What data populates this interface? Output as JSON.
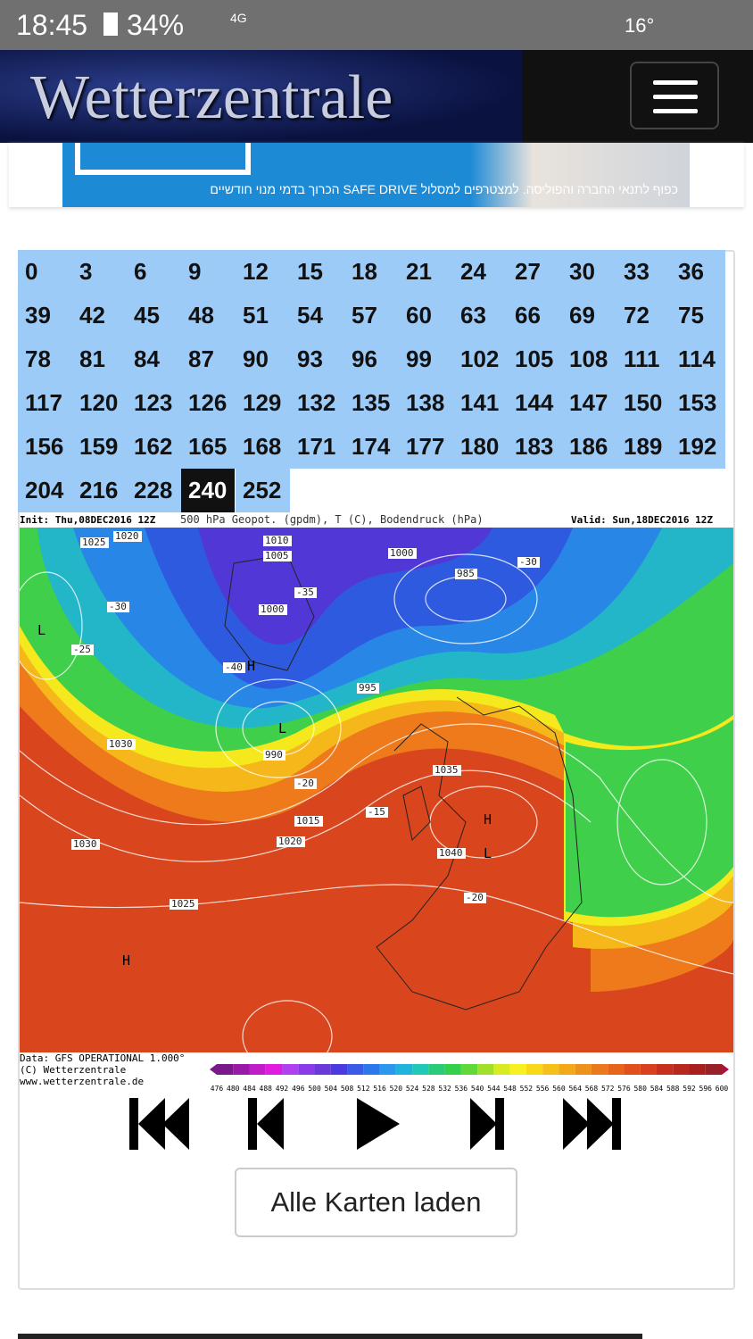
{
  "status_bar": {
    "time": "18:45",
    "battery": "34%",
    "network": "4G",
    "temperature": "16°"
  },
  "header": {
    "logo": "Wetterzentrale"
  },
  "ad": {
    "text": "כפוף לתנאי החברה והפוליסה. למצטרפים למסלול SAFE DRIVE הכרוך בדמי מנוי חודשיים"
  },
  "hours": {
    "values": [
      0,
      3,
      6,
      9,
      12,
      15,
      18,
      21,
      24,
      27,
      30,
      33,
      36,
      39,
      42,
      45,
      48,
      51,
      54,
      57,
      60,
      63,
      66,
      69,
      72,
      75,
      78,
      81,
      84,
      87,
      90,
      93,
      96,
      99,
      102,
      105,
      108,
      111,
      114,
      117,
      120,
      123,
      126,
      129,
      132,
      135,
      138,
      141,
      144,
      147,
      150,
      153,
      156,
      159,
      162,
      165,
      168,
      171,
      174,
      177,
      180,
      183,
      186,
      189,
      192,
      204,
      216,
      228,
      240,
      252
    ],
    "selected": 240
  },
  "map": {
    "init": "Init: Thu,08DEC2016 12Z",
    "title": "500 hPa Geopot. (gpdm), T (C), Bodendruck (hPa)",
    "valid": "Valid: Sun,18DEC2016 12Z",
    "labels": [
      "1025",
      "1020",
      "1010",
      "1005",
      "1000",
      "995",
      "990",
      "985",
      "1000",
      "1030",
      "1040",
      "1035",
      "1015",
      "1020",
      "1030",
      "1025",
      "H",
      "L",
      "H",
      "L",
      "L",
      "H",
      "-40",
      "-35",
      "-30",
      "-25",
      "-20",
      "-15",
      "-20",
      "-30"
    ],
    "footer": [
      "Data: GFS OPERATIONAL 1.000°",
      "(C) Wetterzentrale",
      "www.wetterzentrale.de"
    ],
    "scale": [
      476,
      480,
      484,
      488,
      492,
      496,
      500,
      504,
      508,
      512,
      516,
      520,
      524,
      528,
      532,
      536,
      540,
      544,
      548,
      552,
      556,
      560,
      564,
      568,
      572,
      576,
      580,
      584,
      588,
      592,
      596,
      600
    ]
  },
  "button": {
    "label": "Alle Karten laden"
  }
}
